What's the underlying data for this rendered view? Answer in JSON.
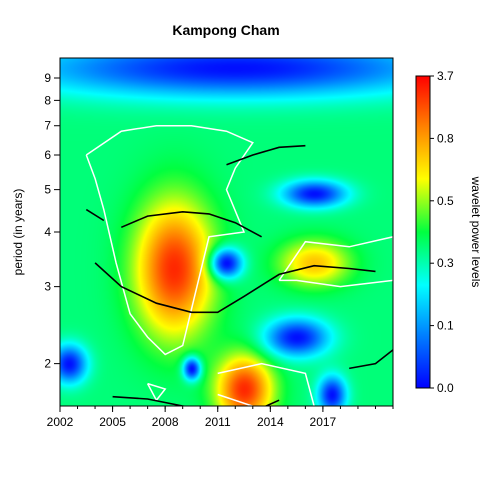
{
  "chart_data": {
    "type": "heatmap",
    "title": "Kampong Cham",
    "xlabel": "",
    "ylabel": "period (in years)",
    "x_axis": {
      "ticks": [
        2002,
        2005,
        2008,
        2011,
        2014,
        2017
      ],
      "tick_labels": [
        "2002",
        "2005",
        "2008",
        "2011",
        "2014",
        "2017"
      ],
      "range": [
        2002,
        2021
      ]
    },
    "y_axis": {
      "scale": "log",
      "ticks": [
        2,
        3,
        4,
        5,
        6,
        7,
        8,
        9
      ],
      "tick_labels": [
        "2",
        "3",
        "4",
        "5",
        "6",
        "7",
        "8",
        "9"
      ],
      "range": [
        1.6,
        10
      ]
    },
    "colorbar": {
      "label": "wavelet power levels",
      "tick_labels": [
        "0.0",
        "0.1",
        "0.3",
        "0.5",
        "0.8",
        "3.7"
      ],
      "levels": [
        0.0,
        0.1,
        0.3,
        0.5,
        0.8,
        3.7
      ],
      "colors": [
        "#0000ff",
        "#00c8ff",
        "#00ff80",
        "#80ff00",
        "#ffff00",
        "#ff8000",
        "#ff0000"
      ]
    },
    "power_features": [
      {
        "x": 2008.5,
        "period": 3.3,
        "power": 3.0,
        "extent_x": 2.2,
        "extent_log_period": 0.35
      },
      {
        "x": 2012.5,
        "period": 1.75,
        "power": 3.2,
        "extent_x": 1.6,
        "extent_log_period": 0.18
      },
      {
        "x": 2016.5,
        "period": 3.4,
        "power": 0.9,
        "extent_x": 2.0,
        "extent_log_period": 0.12
      },
      {
        "x": 2011.5,
        "period": 3.4,
        "power": 0.05,
        "extent_x": 0.9,
        "extent_log_period": 0.08
      },
      {
        "x": 2015.5,
        "period": 2.3,
        "power": 0.05,
        "extent_x": 1.8,
        "extent_log_period": 0.1
      },
      {
        "x": 2016.5,
        "period": 4.9,
        "power": 0.05,
        "extent_x": 1.8,
        "extent_log_period": 0.07
      },
      {
        "x": 2012.0,
        "period": 9.5,
        "power": 0.0,
        "extent_x": 12.0,
        "extent_log_period": 0.15
      },
      {
        "x": 2009.5,
        "period": 1.95,
        "power": 0.0,
        "extent_x": 0.5,
        "extent_log_period": 0.06
      },
      {
        "x": 2002.5,
        "period": 2.0,
        "power": 0.05,
        "extent_x": 1.0,
        "extent_log_period": 0.1
      },
      {
        "x": 2017.5,
        "period": 1.7,
        "power": 0.0,
        "extent_x": 0.8,
        "extent_log_period": 0.1
      }
    ],
    "ridges": [
      {
        "x": [
          2005.5,
          2007.0,
          2009.0,
          2010.5,
          2012.0,
          2013.5
        ],
        "period": [
          4.1,
          4.35,
          4.45,
          4.4,
          4.2,
          3.9
        ]
      },
      {
        "x": [
          2004.0,
          2005.5,
          2007.5,
          2009.5,
          2011.0,
          2012.5,
          2014.5,
          2016.5,
          2018.5,
          2020.0
        ],
        "period": [
          3.4,
          3.0,
          2.75,
          2.62,
          2.62,
          2.85,
          3.2,
          3.35,
          3.3,
          3.25
        ]
      },
      {
        "x": [
          2011.5,
          2013.0,
          2014.5,
          2016.0
        ],
        "period": [
          5.7,
          6.0,
          6.25,
          6.3
        ]
      },
      {
        "x": [
          2003.5,
          2004.5
        ],
        "period": [
          4.5,
          4.25
        ]
      },
      {
        "x": [
          2005.0,
          2007.0,
          2009.0,
          2011.0,
          2013.0,
          2014.5
        ],
        "period": [
          1.68,
          1.66,
          1.6,
          1.55,
          1.55,
          1.65
        ]
      },
      {
        "x": [
          2018.5,
          2020.0,
          2021.0
        ],
        "period": [
          1.95,
          2.0,
          2.15
        ]
      }
    ],
    "significance_contours": [
      {
        "x": [
          2003.5,
          2005.5,
          2007.5,
          2009.5,
          2011.5,
          2013.0,
          2012.0,
          2011.5,
          2012.5,
          2010.5,
          2009.0,
          2008.0,
          2007.0,
          2006.0,
          2005.2,
          2004.5,
          2004.0,
          2003.5
        ],
        "period": [
          6.0,
          6.8,
          7.0,
          7.0,
          6.8,
          6.4,
          5.6,
          5.0,
          4.0,
          3.9,
          2.2,
          2.1,
          2.3,
          2.6,
          3.4,
          4.5,
          5.3,
          6.0
        ]
      },
      {
        "x": [
          2011.0,
          2013.5,
          2016.0,
          2016.5,
          2014.0,
          2011.0
        ],
        "period": [
          1.9,
          2.0,
          1.9,
          1.6,
          1.55,
          1.7
        ]
      },
      {
        "x": [
          2014.5,
          2016.0,
          2018.5,
          2021.0,
          2021.0,
          2018.0,
          2015.5,
          2014.5
        ],
        "period": [
          3.1,
          3.8,
          3.7,
          3.9,
          3.1,
          3.0,
          3.1,
          3.1
        ]
      },
      {
        "x": [
          2007.0,
          2008.0,
          2007.5,
          2007.0
        ],
        "period": [
          1.8,
          1.75,
          1.65,
          1.8
        ]
      }
    ]
  }
}
